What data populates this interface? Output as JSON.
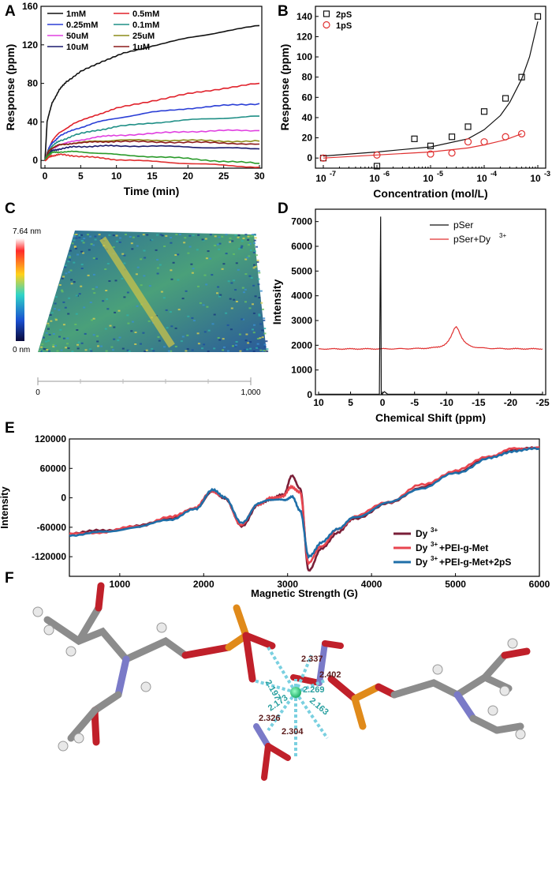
{
  "panels": {
    "A": {
      "letter": "A"
    },
    "B": {
      "letter": "B"
    },
    "C": {
      "letter": "C"
    },
    "D": {
      "letter": "D"
    },
    "E": {
      "letter": "E"
    },
    "F": {
      "letter": "F"
    }
  },
  "chart_data": [
    {
      "panel": "A",
      "type": "line",
      "xlabel": "Time (min)",
      "ylabel": "Response (ppm)",
      "xlim": [
        0,
        30
      ],
      "ylim": [
        -8,
        160
      ],
      "xticks": [
        0,
        5,
        10,
        15,
        20,
        25,
        30
      ],
      "yticks": [
        0,
        40,
        80,
        120,
        160
      ],
      "legend": "top-left",
      "series": [
        {
          "name": "1mM",
          "color": "#111111",
          "points": [
            [
              0,
              0
            ],
            [
              0.3,
              40
            ],
            [
              1,
              60
            ],
            [
              2,
              73
            ],
            [
              3,
              82
            ],
            [
              5,
              92
            ],
            [
              8,
              103
            ],
            [
              11,
              111
            ],
            [
              15,
              119
            ],
            [
              20,
              127
            ],
            [
              25,
              134
            ],
            [
              30,
              140
            ]
          ]
        },
        {
          "name": "0.5mM",
          "color": "#e0202a",
          "points": [
            [
              0,
              0
            ],
            [
              0.5,
              12
            ],
            [
              1,
              20
            ],
            [
              2,
              29
            ],
            [
              4,
              38
            ],
            [
              7,
              47
            ],
            [
              10,
              54
            ],
            [
              15,
              62
            ],
            [
              20,
              69
            ],
            [
              25,
              75
            ],
            [
              30,
              80
            ]
          ]
        },
        {
          "name": "0.25mM",
          "color": "#2b3fd6",
          "points": [
            [
              0,
              0
            ],
            [
              0.5,
              12
            ],
            [
              1,
              18
            ],
            [
              2,
              25
            ],
            [
              4,
              32
            ],
            [
              7,
              39
            ],
            [
              10,
              44
            ],
            [
              15,
              50
            ],
            [
              20,
              54
            ],
            [
              25,
              57
            ],
            [
              30,
              59
            ]
          ]
        },
        {
          "name": "0.1mM",
          "color": "#1f8f86",
          "points": [
            [
              0,
              0
            ],
            [
              0.5,
              10
            ],
            [
              1,
              15
            ],
            [
              2,
              20
            ],
            [
              4,
              26
            ],
            [
              7,
              31
            ],
            [
              10,
              35
            ],
            [
              15,
              39
            ],
            [
              20,
              42
            ],
            [
              25,
              44
            ],
            [
              30,
              46
            ]
          ]
        },
        {
          "name": "50uM",
          "color": "#e040e0",
          "points": [
            [
              0,
              0
            ],
            [
              0.5,
              8
            ],
            [
              1,
              12
            ],
            [
              2,
              16
            ],
            [
              4,
              20
            ],
            [
              7,
              24
            ],
            [
              10,
              26
            ],
            [
              15,
              28
            ],
            [
              20,
              30
            ],
            [
              25,
              31
            ],
            [
              30,
              31
            ]
          ]
        },
        {
          "name": "25uM",
          "color": "#8c8c1a",
          "points": [
            [
              0,
              0
            ],
            [
              0.5,
              9
            ],
            [
              1,
              13
            ],
            [
              2,
              16
            ],
            [
              4,
              18
            ],
            [
              7,
              20
            ],
            [
              10,
              21
            ],
            [
              15,
              21
            ],
            [
              20,
              21
            ],
            [
              25,
              20
            ],
            [
              30,
              20
            ]
          ]
        },
        {
          "name": "10uM",
          "color": "#1a1a6e",
          "points": [
            [
              0,
              0
            ],
            [
              0.5,
              7
            ],
            [
              1,
              10
            ],
            [
              2,
              12
            ],
            [
              4,
              14
            ],
            [
              7,
              15
            ],
            [
              10,
              15
            ],
            [
              15,
              15
            ],
            [
              20,
              14
            ],
            [
              25,
              13
            ],
            [
              30,
              12
            ]
          ]
        },
        {
          "name": "1uM",
          "color": "#8b1a1a",
          "points": [
            [
              0,
              0
            ],
            [
              0.5,
              9
            ],
            [
              1,
              13
            ],
            [
              2,
              16
            ],
            [
              4,
              18
            ],
            [
              7,
              19
            ],
            [
              10,
              20
            ],
            [
              15,
              19
            ],
            [
              20,
              19
            ],
            [
              25,
              18
            ],
            [
              30,
              17
            ]
          ]
        },
        {
          "name": "",
          "color": "#2a9a2a",
          "points": [
            [
              0,
              0
            ],
            [
              0.5,
              6
            ],
            [
              1,
              8
            ],
            [
              2,
              9
            ],
            [
              4,
              9
            ],
            [
              7,
              8
            ],
            [
              10,
              6
            ],
            [
              15,
              4
            ],
            [
              20,
              2
            ],
            [
              25,
              -1
            ],
            [
              30,
              -3
            ]
          ]
        },
        {
          "name": "",
          "color": "#e03030",
          "points": [
            [
              0,
              0
            ],
            [
              0.5,
              3
            ],
            [
              1,
              5
            ],
            [
              2,
              6
            ],
            [
              4,
              5
            ],
            [
              7,
              3
            ],
            [
              10,
              1
            ],
            [
              15,
              -1
            ],
            [
              20,
              -3
            ],
            [
              25,
              -5
            ],
            [
              30,
              -7
            ]
          ]
        }
      ]
    },
    {
      "panel": "B",
      "type": "scatter",
      "xlabel": "Concentration (mol/L)",
      "ylabel": "Response (ppm)",
      "xscale": "log",
      "xlim": [
        1e-07,
        0.001
      ],
      "ylim": [
        -10,
        150
      ],
      "xticks": [
        "10",
        "10",
        "10",
        "10",
        "10"
      ],
      "xtick_exponents": [
        "-7",
        "-6",
        "-5",
        "-4",
        "-3"
      ],
      "yticks": [
        0,
        20,
        40,
        60,
        80,
        100,
        120,
        140
      ],
      "legend": "top-left",
      "series": [
        {
          "name": "2pS",
          "color": "#111111",
          "marker": "square",
          "x": [
            1e-07,
            1e-06,
            5e-06,
            1e-05,
            2.5e-05,
            5e-05,
            0.0001,
            0.00025,
            0.0005,
            0.001
          ],
          "y": [
            0,
            -8,
            19,
            12,
            21,
            31,
            46,
            59,
            80,
            140
          ],
          "fit_x": [
            1e-07,
            1e-06,
            1e-05,
            5e-05,
            0.0001,
            0.0002,
            0.0003,
            0.0005,
            0.0007,
            0.001
          ],
          "fit_y": [
            2,
            6,
            11,
            19,
            28,
            42,
            55,
            78,
            100,
            135
          ]
        },
        {
          "name": "1pS",
          "color": "#e03030",
          "marker": "circle",
          "x": [
            1e-07,
            1e-06,
            1e-05,
            2.5e-05,
            5e-05,
            0.0001,
            0.00025,
            0.0005
          ],
          "y": [
            0,
            3,
            4,
            5,
            16,
            16,
            21,
            24
          ],
          "fit_x": [
            1e-07,
            1e-06,
            1e-05,
            5e-05,
            0.0001,
            0.00025,
            0.0005
          ],
          "fit_y": [
            0,
            3,
            6,
            10,
            13,
            18,
            24
          ]
        }
      ]
    },
    {
      "panel": "C",
      "type": "heatmap",
      "colorbar_max": "7.64 nm",
      "colorbar_min": "0 nm",
      "xticks": [
        "0",
        "1,000"
      ]
    },
    {
      "panel": "D",
      "type": "line",
      "xlabel": "Chemical Shift (ppm)",
      "ylabel": "Intensity",
      "xlim": [
        10,
        -25
      ],
      "ylim": [
        0,
        7500
      ],
      "xticks": [
        10,
        5,
        0,
        -5,
        -10,
        -15,
        -20,
        -25
      ],
      "yticks": [
        0,
        1000,
        2000,
        3000,
        4000,
        5000,
        6000,
        7000
      ],
      "legend": "top-right",
      "series": [
        {
          "name": "pSer",
          "color": "#111111",
          "baseline": 20,
          "peak_at": 0.2,
          "peak_height": 7200
        },
        {
          "name": "pSer+Dy",
          "superscript": "3+",
          "color": "#e03030",
          "baseline": 1850,
          "peak_at": -11.5,
          "peak_height": 2750
        }
      ]
    },
    {
      "panel": "E",
      "type": "line",
      "xlabel": "Magnetic Strength (G)",
      "ylabel": "Intensity",
      "xlim": [
        400,
        6000
      ],
      "ylim": [
        -160000,
        120000
      ],
      "xticks": [
        1000,
        2000,
        3000,
        4000,
        5000,
        6000
      ],
      "yticks": [
        -120000,
        -60000,
        0,
        60000,
        120000
      ],
      "legend": "bottom-right",
      "series": [
        {
          "name": "Dy",
          "superscript": "3+",
          "suffix": "",
          "color": "#7a1f38",
          "points": [
            [
              400,
              -72000
            ],
            [
              800,
              -67000
            ],
            [
              1200,
              -58000
            ],
            [
              1600,
              -42000
            ],
            [
              1900,
              -22000
            ],
            [
              2100,
              12000
            ],
            [
              2250,
              0
            ],
            [
              2450,
              -58000
            ],
            [
              2650,
              -15000
            ],
            [
              2800,
              -2000
            ],
            [
              2950,
              6000
            ],
            [
              3050,
              44000
            ],
            [
              3150,
              20000
            ],
            [
              3250,
              -148000
            ],
            [
              3400,
              -105000
            ],
            [
              3600,
              -70000
            ],
            [
              3800,
              -42000
            ],
            [
              4200,
              -12000
            ],
            [
              4600,
              22000
            ],
            [
              5000,
              52000
            ],
            [
              5400,
              82000
            ],
            [
              5700,
              98000
            ],
            [
              6000,
              102000
            ]
          ]
        },
        {
          "name": "Dy",
          "superscript": "3+",
          "suffix": "+PEI-g-Met",
          "color": "#e8454f",
          "points": [
            [
              400,
              -74000
            ],
            [
              800,
              -70000
            ],
            [
              1200,
              -58000
            ],
            [
              1600,
              -40000
            ],
            [
              1900,
              -20000
            ],
            [
              2100,
              14000
            ],
            [
              2250,
              0
            ],
            [
              2450,
              -55000
            ],
            [
              2650,
              -13000
            ],
            [
              2800,
              -1000
            ],
            [
              2950,
              4000
            ],
            [
              3050,
              23000
            ],
            [
              3150,
              10000
            ],
            [
              3250,
              -133000
            ],
            [
              3400,
              -98000
            ],
            [
              3600,
              -65000
            ],
            [
              3800,
              -38000
            ],
            [
              4200,
              -8000
            ],
            [
              4600,
              26000
            ],
            [
              5000,
              55000
            ],
            [
              5400,
              85000
            ],
            [
              5700,
              100000
            ],
            [
              6000,
              103000
            ]
          ]
        },
        {
          "name": "Dy",
          "superscript": "3+",
          "suffix": "+PEI-g-Met+2pS",
          "color": "#1f6fa8",
          "points": [
            [
              400,
              -76000
            ],
            [
              800,
              -70000
            ],
            [
              1200,
              -60000
            ],
            [
              1600,
              -44000
            ],
            [
              1900,
              -24000
            ],
            [
              2100,
              16000
            ],
            [
              2250,
              2000
            ],
            [
              2450,
              -52000
            ],
            [
              2650,
              -12000
            ],
            [
              2800,
              -3000
            ],
            [
              2950,
              -5000
            ],
            [
              3050,
              2000
            ],
            [
              3150,
              -25000
            ],
            [
              3250,
              -120000
            ],
            [
              3400,
              -92000
            ],
            [
              3600,
              -62000
            ],
            [
              3800,
              -40000
            ],
            [
              4200,
              -10000
            ],
            [
              4600,
              20000
            ],
            [
              5000,
              50000
            ],
            [
              5400,
              80000
            ],
            [
              5700,
              96000
            ],
            [
              6000,
              100000
            ]
          ]
        }
      ]
    }
  ],
  "structure_F": {
    "bond_lengths": [
      "2.337",
      "2.402",
      "2.197",
      "2.269",
      "2.173",
      "2.163",
      "2.326",
      "2.304"
    ]
  }
}
